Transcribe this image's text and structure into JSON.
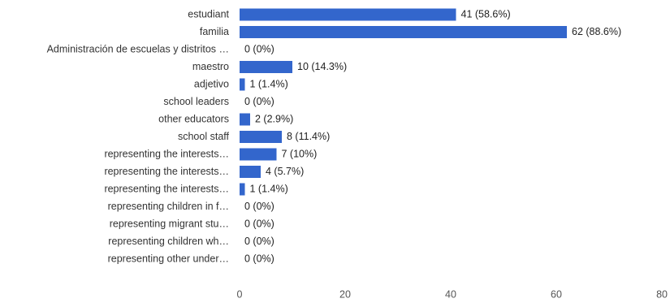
{
  "chart_data": {
    "type": "bar",
    "orientation": "horizontal",
    "categories": [
      "estudiant",
      "familia",
      "Administración de escuelas y distritos …",
      "maestro",
      "adjetivo",
      "school leaders",
      "other educators",
      "school staff",
      "representing the interests…",
      "representing the interests…",
      "representing the interests…",
      "representing children in f…",
      "representing migrant stu…",
      "representing children wh…",
      "representing other under…"
    ],
    "values": [
      41,
      62,
      0,
      10,
      1,
      0,
      2,
      8,
      7,
      4,
      1,
      0,
      0,
      0,
      0
    ],
    "data_labels": [
      "41 (58.6%)",
      "62 (88.6%)",
      "0 (0%)",
      "10 (14.3%)",
      "1 (1.4%)",
      "0 (0%)",
      "2 (2.9%)",
      "8 (11.4%)",
      "7 (10%)",
      "4 (5.7%)",
      "1 (1.4%)",
      "0 (0%)",
      "0 (0%)",
      "0 (0%)",
      "0 (0%)"
    ],
    "x_ticks": [
      "0",
      "20",
      "40",
      "60",
      "80"
    ],
    "xlim": [
      0,
      80
    ],
    "bar_color": "#3366cc",
    "grid": false,
    "title": "",
    "xlabel": "",
    "ylabel": ""
  }
}
